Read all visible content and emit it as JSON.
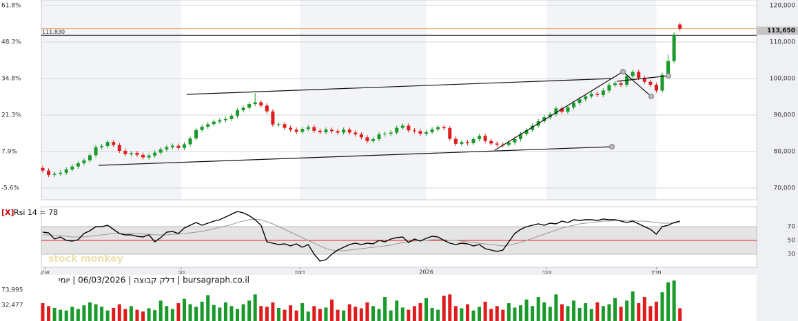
{
  "chart_data": [
    {
      "type": "candlestick",
      "xlim": [
        -0.23,
        121
      ],
      "xticks": [
        {
          "value": 0.4,
          "label": "אוק"
        },
        {
          "value": 23.5,
          "label": "נוב"
        },
        {
          "value": 43.6,
          "label": "דצמ"
        },
        {
          "value": 65,
          "label": "2026"
        },
        {
          "value": 85.4,
          "label": "פבר"
        },
        {
          "value": 104,
          "label": "מרץ"
        }
      ],
      "ylim": [
        66800,
        121500
      ],
      "yticks": [
        {
          "value": 70000,
          "label": "70,000"
        },
        {
          "value": 80000,
          "label": "80,000"
        },
        {
          "value": 90000,
          "label": "90,000"
        },
        {
          "value": 100000,
          "label": "100,000"
        },
        {
          "value": 110000,
          "label": "110,000"
        },
        {
          "value": 120000,
          "label": "120,000"
        }
      ],
      "y2lim": [
        -9.9,
        63.8
      ],
      "y2ticks": [
        {
          "value": -5.6,
          "label": "-5.6%"
        },
        {
          "value": 7.9,
          "label": "7.9%"
        },
        {
          "value": 21.3,
          "label": "21.3%"
        },
        {
          "value": 34.8,
          "label": "34.8%"
        },
        {
          "value": 48.3,
          "label": "48.3%"
        },
        {
          "value": 61.8,
          "label": "61.8%"
        }
      ],
      "up_color": "#1a9a2a",
      "down_color": "#e01b1b",
      "last_price": {
        "value": 113650,
        "label": "113,650",
        "color": "#f0a060"
      },
      "level_line": {
        "value": 111830,
        "label": "111.830",
        "color": "#222"
      },
      "open": [
        75500,
        74800,
        73600,
        73900,
        74200,
        75100,
        75900,
        76800,
        77600,
        79000,
        81200,
        81500,
        82600,
        81800,
        80200,
        79300,
        79600,
        79100,
        78400,
        78900,
        79700,
        80600,
        81200,
        81600,
        81000,
        82000,
        83600,
        85900,
        86800,
        87500,
        88200,
        88600,
        88900,
        89800,
        91300,
        92000,
        93000,
        93500,
        92600,
        91000,
        87400,
        87500,
        86500,
        86000,
        85400,
        86200,
        86700,
        85700,
        85300,
        86000,
        85600,
        85200,
        86000,
        85200,
        84700,
        83900,
        82900,
        83400,
        84700,
        84900,
        85200,
        86500,
        87100,
        85800,
        85600,
        84900,
        85300,
        86100,
        86700,
        86400,
        83500,
        82100,
        82600,
        82300,
        83400,
        84300,
        82900,
        82200,
        81900,
        81800,
        82500,
        83400,
        84800,
        85900,
        87100,
        88300,
        89400,
        90200,
        91800,
        90900,
        92100,
        93300,
        94300,
        95100,
        95800,
        95500,
        96700,
        98200,
        98700,
        98300,
        100700,
        101800,
        100200,
        99100,
        98300,
        96700,
        101000,
        104800,
        114800
      ],
      "high": [
        76100,
        75400,
        74500,
        74800,
        75700,
        76500,
        77400,
        78200,
        79600,
        81800,
        82100,
        83200,
        83200,
        82400,
        80800,
        80200,
        80200,
        79700,
        79500,
        80300,
        81200,
        81800,
        82200,
        82200,
        82600,
        84200,
        86500,
        87400,
        88100,
        88800,
        89200,
        89500,
        90400,
        91900,
        92600,
        93600,
        96000,
        94100,
        93200,
        91600,
        88100,
        88100,
        87100,
        86600,
        86800,
        87300,
        87300,
        86300,
        86600,
        86600,
        86200,
        86600,
        86600,
        85800,
        85300,
        84500,
        84000,
        85300,
        85500,
        85800,
        87100,
        87700,
        87700,
        86400,
        86200,
        85900,
        86700,
        87300,
        87300,
        87000,
        84100,
        83200,
        83200,
        84000,
        84900,
        84900,
        83500,
        82800,
        82500,
        83100,
        84000,
        85400,
        86500,
        87700,
        88900,
        90000,
        90800,
        92400,
        92400,
        92700,
        93900,
        94900,
        95700,
        96400,
        96400,
        97300,
        98800,
        99300,
        99300,
        101300,
        102400,
        102400,
        100800,
        99700,
        98900,
        101600,
        106500,
        112600,
        115300
      ],
      "low": [
        74200,
        73000,
        73000,
        73300,
        73600,
        74500,
        75300,
        76200,
        77000,
        78400,
        80600,
        80900,
        81200,
        79600,
        78700,
        78700,
        78500,
        77800,
        77800,
        78300,
        79100,
        80000,
        80600,
        80400,
        80400,
        81400,
        83000,
        85300,
        86200,
        86900,
        87600,
        88000,
        88300,
        89200,
        90700,
        91400,
        92400,
        92000,
        90400,
        86800,
        86800,
        85900,
        85400,
        84800,
        84800,
        85600,
        85100,
        84700,
        84700,
        85000,
        84600,
        84600,
        84600,
        84100,
        83300,
        82300,
        82300,
        82800,
        84100,
        84300,
        84600,
        85900,
        85200,
        85000,
        84300,
        84300,
        84700,
        85500,
        85800,
        82900,
        81500,
        81500,
        81700,
        81700,
        82800,
        82300,
        81600,
        81300,
        81200,
        81200,
        81900,
        82800,
        84200,
        85300,
        86500,
        87700,
        88800,
        89600,
        90300,
        90300,
        91500,
        92700,
        93700,
        94500,
        94900,
        94900,
        96100,
        97600,
        97700,
        97700,
        100100,
        99600,
        98500,
        97700,
        96100,
        96100,
        100400,
        104200,
        113000
      ],
      "close": [
        74800,
        73600,
        73900,
        74200,
        75100,
        75900,
        76800,
        77600,
        79000,
        81200,
        81500,
        82600,
        81800,
        80200,
        79300,
        79600,
        79100,
        78400,
        78900,
        79700,
        80600,
        81200,
        81600,
        81000,
        82000,
        83600,
        85900,
        86800,
        87500,
        88200,
        88600,
        88900,
        89800,
        91300,
        92000,
        93000,
        93500,
        92600,
        91000,
        87400,
        87500,
        86500,
        86000,
        85400,
        86200,
        86700,
        85700,
        85300,
        86000,
        85600,
        85200,
        86000,
        85200,
        84700,
        83900,
        82900,
        83400,
        84700,
        84900,
        85200,
        86500,
        87100,
        85800,
        85600,
        84900,
        85300,
        86100,
        86700,
        86400,
        83500,
        82100,
        82600,
        82300,
        83400,
        84300,
        82900,
        82200,
        81900,
        81800,
        82500,
        83400,
        84800,
        85900,
        87100,
        88300,
        89400,
        90200,
        91800,
        90900,
        92100,
        93300,
        94300,
        95100,
        95800,
        95500,
        96700,
        98200,
        98700,
        98300,
        100700,
        101800,
        100200,
        99100,
        98300,
        96700,
        101000,
        104800,
        112000,
        113650
      ]
    },
    {
      "type": "line",
      "close_button": "[X]",
      "title": "Rsi 14 = 78",
      "watermark": "stock monkey",
      "ylim": [
        11,
        99
      ],
      "yticks": [
        30,
        50,
        70
      ],
      "band": [
        30,
        70
      ],
      "band_color": "#e4e4e4",
      "midline": 50,
      "midline_color": "#e02020",
      "series": [
        {
          "color": "#000000",
          "values": [
            62,
            61,
            52,
            55,
            50,
            49,
            51,
            60,
            64,
            70,
            70,
            72,
            66,
            60,
            58,
            58,
            56,
            55,
            58,
            48,
            54,
            62,
            63,
            60,
            68,
            72,
            76,
            72,
            75,
            78,
            80,
            84,
            88,
            92,
            90,
            86,
            80,
            72,
            48,
            46,
            44,
            45,
            42,
            45,
            40,
            44,
            30,
            20,
            22,
            30,
            36,
            40,
            44,
            46,
            44,
            46,
            45,
            50,
            48,
            52,
            54,
            55,
            47,
            52,
            49,
            53,
            56,
            55,
            50,
            46,
            44,
            46,
            45,
            42,
            44,
            38,
            36,
            34,
            36,
            48,
            60,
            66,
            70,
            72,
            74,
            72,
            75,
            74,
            78,
            76,
            80,
            79,
            80,
            80,
            79,
            81,
            80,
            80,
            78,
            76,
            78,
            74,
            70,
            66,
            59,
            70,
            72,
            76,
            78
          ]
        },
        {
          "color": "#999999",
          "values": [
            58,
            58,
            57,
            57,
            56,
            55,
            55,
            55,
            56,
            57,
            58,
            59,
            60,
            60,
            60,
            60,
            60,
            59,
            59,
            58,
            58,
            58,
            59,
            59,
            60,
            61,
            62,
            63,
            65,
            67,
            69,
            71,
            73,
            76,
            78,
            80,
            81,
            80,
            77,
            74,
            70,
            66,
            62,
            58,
            54,
            50,
            46,
            42,
            38,
            36,
            35,
            35,
            36,
            37,
            38,
            39,
            40,
            41,
            42,
            43,
            45,
            47,
            48,
            49,
            50,
            50,
            51,
            51,
            51,
            50,
            50,
            49,
            48,
            47,
            46,
            45,
            44,
            43,
            42,
            43,
            45,
            47,
            50,
            53,
            56,
            59,
            62,
            65,
            68,
            70,
            72,
            74,
            75,
            76,
            77,
            78,
            78,
            79,
            79,
            79,
            79,
            78,
            78,
            77,
            76,
            75,
            75,
            75,
            76
          ]
        }
      ]
    },
    {
      "type": "bar",
      "title": "bursagraph.co.il | דלק קבוצה | 06/03/2026 | יומי",
      "ylim": [
        -10900,
        113600
      ],
      "yticks": [
        {
          "value": 32477,
          "label": "32,477"
        },
        {
          "value": 73995,
          "label": "73,995"
        }
      ],
      "values": [
        38000,
        30000,
        25000,
        20000,
        18000,
        28000,
        22000,
        32000,
        40000,
        35000,
        28000,
        18000,
        25000,
        35000,
        22000,
        30000,
        20000,
        15000,
        24000,
        19000,
        45000,
        30000,
        22000,
        38000,
        50000,
        35000,
        28000,
        42000,
        60000,
        33000,
        26000,
        40000,
        30000,
        22000,
        35000,
        45000,
        62000,
        30000,
        28000,
        40000,
        25000,
        20000,
        32000,
        18000,
        38000,
        15000,
        30000,
        22000,
        26000,
        48000,
        20000,
        18000,
        35000,
        28000,
        24000,
        40000,
        30000,
        22000,
        55000,
        18000,
        45000,
        26000,
        20000,
        30000,
        38000,
        52000,
        25000,
        20000,
        58000,
        62000,
        30000,
        24000,
        35000,
        18000,
        28000,
        42000,
        22000,
        30000,
        20000,
        38000,
        26000,
        32000,
        48000,
        30000,
        55000,
        40000,
        28000,
        62000,
        35000,
        30000,
        45000,
        25000,
        38000,
        22000,
        40000,
        30000,
        35000,
        52000,
        28000,
        45000,
        70000,
        38000,
        55000,
        30000,
        42000,
        68000,
        95000,
        100000,
        24000
      ]
    }
  ]
}
